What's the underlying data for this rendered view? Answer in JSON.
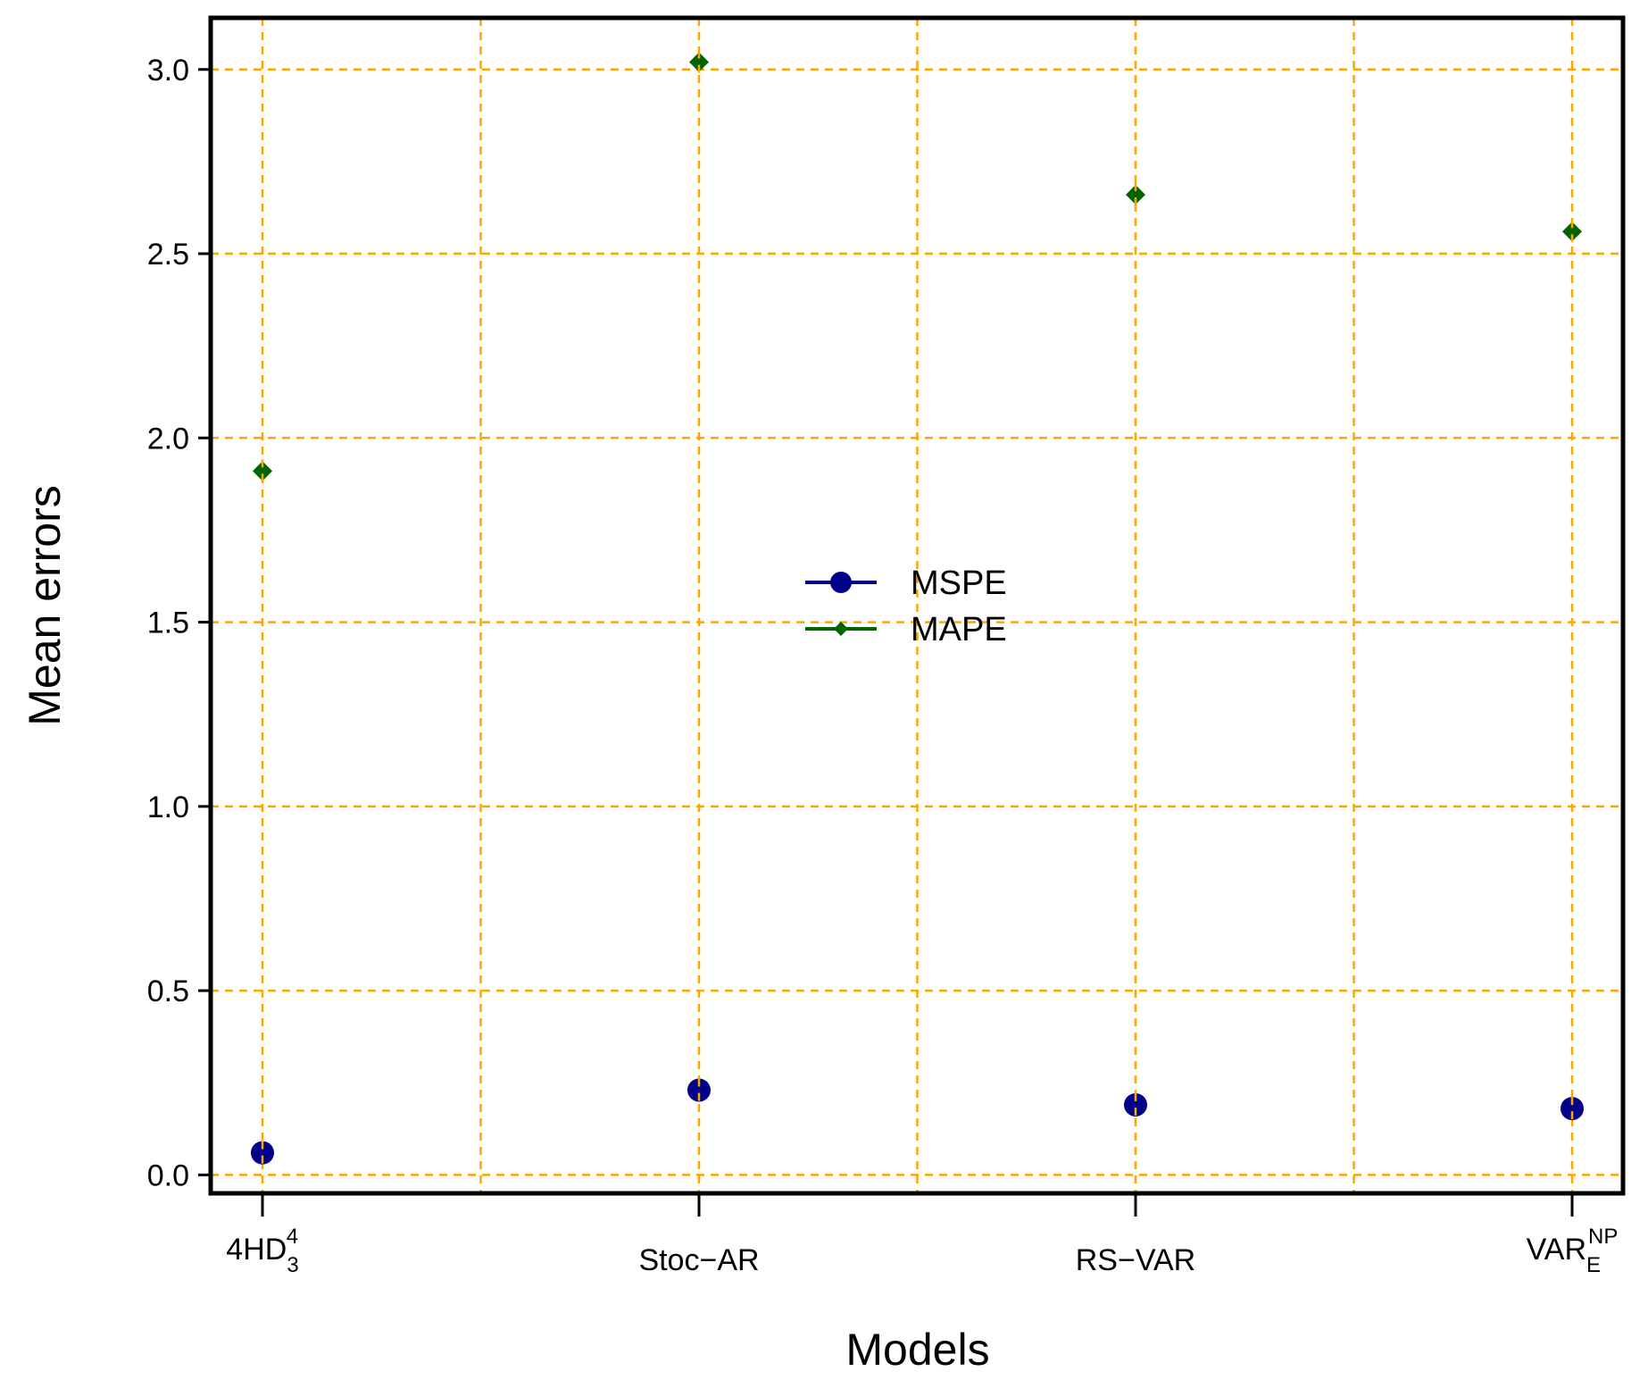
{
  "chart_data": {
    "type": "scatter",
    "title": "",
    "xlabel": "Models",
    "ylabel": "Mean errors",
    "categories": [
      {
        "base": "4HD",
        "sub": "3",
        "sup": "4"
      },
      {
        "base": "Stoc−AR",
        "sub": "",
        "sup": ""
      },
      {
        "base": "RS−VAR",
        "sub": "",
        "sup": ""
      },
      {
        "base": "VAR",
        "sub": "E",
        "sup": "NP"
      }
    ],
    "series": [
      {
        "name": "MSPE",
        "color": "#00008B",
        "marker": "circle",
        "values": [
          0.06,
          0.23,
          0.19,
          0.18
        ]
      },
      {
        "name": "MAPE",
        "color": "#006400",
        "marker": "diamond",
        "values": [
          1.91,
          3.02,
          2.66,
          2.56
        ]
      }
    ],
    "ylim": [
      -0.05,
      3.14
    ],
    "yticks": [
      "0.0",
      "0.5",
      "1.0",
      "1.5",
      "2.0",
      "2.5",
      "3.0"
    ],
    "grid": true,
    "grid_color": "#FFA500",
    "legend_position": "center"
  }
}
